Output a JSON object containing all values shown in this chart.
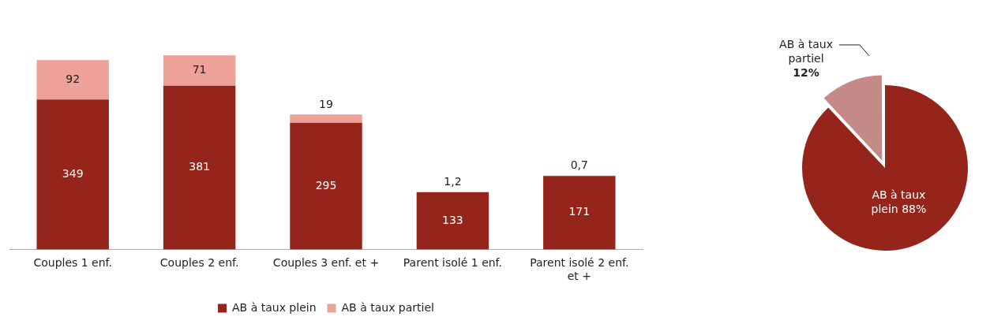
{
  "chart_data": [
    {
      "type": "bar",
      "stacked": true,
      "legend": "bottom",
      "categories": [
        "Couples 1 enf.",
        "Couples 2 enf.",
        "Couples 3 enf. et +",
        "Parent isolé 1 enf.",
        "Parent isolé 2 enf. et +"
      ],
      "series": [
        {
          "name": "AB à taux plein",
          "color": "#95241a",
          "values": [
            349,
            381,
            295,
            133,
            171
          ],
          "value_labels": [
            "349",
            "381",
            "295",
            "133",
            "171"
          ]
        },
        {
          "name": "AB à taux partiel",
          "color": "#eea199",
          "values": [
            92,
            71,
            19,
            1.2,
            0.7
          ],
          "value_labels": [
            "92",
            "71",
            "19",
            "1,2",
            "0,7"
          ]
        }
      ]
    },
    {
      "type": "pie",
      "categories": [
        "AB à taux plein",
        "AB à taux partiel"
      ],
      "values": [
        88,
        12
      ],
      "colors": [
        "#95241a",
        "#c48a87"
      ],
      "value_labels": [
        "88%",
        "12%"
      ]
    }
  ]
}
